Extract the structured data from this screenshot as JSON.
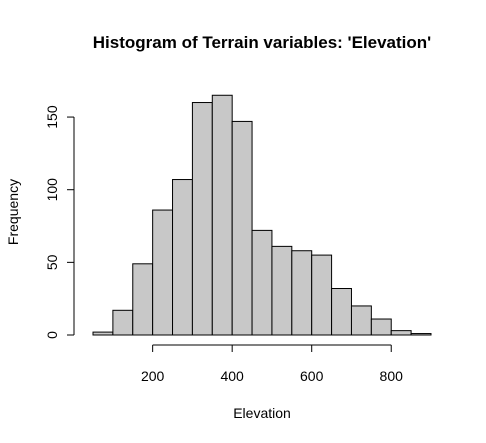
{
  "chart_data": {
    "type": "bar",
    "title": "Histogram of Terrain variables: 'Elevation'",
    "xlabel": "Elevation",
    "ylabel": "Frequency",
    "bins": [
      {
        "from": 50,
        "to": 100,
        "count": 2
      },
      {
        "from": 100,
        "to": 150,
        "count": 17
      },
      {
        "from": 150,
        "to": 200,
        "count": 49
      },
      {
        "from": 200,
        "to": 250,
        "count": 86
      },
      {
        "from": 250,
        "to": 300,
        "count": 107
      },
      {
        "from": 300,
        "to": 350,
        "count": 160
      },
      {
        "from": 350,
        "to": 400,
        "count": 165
      },
      {
        "from": 400,
        "to": 450,
        "count": 147
      },
      {
        "from": 450,
        "to": 500,
        "count": 72
      },
      {
        "from": 500,
        "to": 550,
        "count": 61
      },
      {
        "from": 550,
        "to": 600,
        "count": 58
      },
      {
        "from": 600,
        "to": 650,
        "count": 55
      },
      {
        "from": 650,
        "to": 700,
        "count": 32
      },
      {
        "from": 700,
        "to": 750,
        "count": 20
      },
      {
        "from": 750,
        "to": 800,
        "count": 11
      },
      {
        "from": 800,
        "to": 850,
        "count": 3
      },
      {
        "from": 850,
        "to": 900,
        "count": 1
      }
    ],
    "xlim": [
      50,
      900
    ],
    "ylim": [
      0,
      170
    ],
    "x_ticks": [
      200,
      400,
      600,
      800
    ],
    "y_ticks": [
      0,
      50,
      100,
      150
    ],
    "bar_color": "#c8c8c8",
    "grid": false
  }
}
